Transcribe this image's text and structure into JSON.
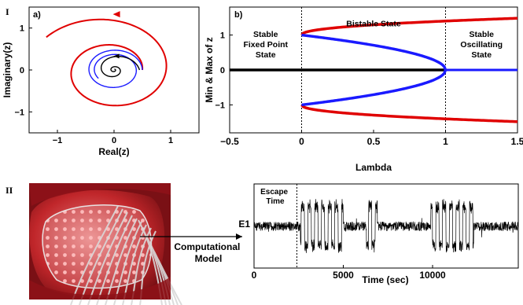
{
  "section_labels": [
    "I",
    "II"
  ],
  "chart_data": [
    {
      "panel": "a)",
      "type": "line",
      "xlabel": "Real(z)",
      "ylabel": "Imaginary(z)",
      "xlim": [
        -1.5,
        1.5
      ],
      "ylim": [
        -1.5,
        1.5
      ],
      "xticks": [
        -1,
        0,
        1
      ],
      "yticks": [
        -1,
        0,
        1
      ],
      "xtick_labels": [
        "−1",
        "0",
        "1"
      ],
      "ytick_labels": [
        "−1",
        "0",
        "1"
      ],
      "grid": false,
      "series": [
        {
          "color": "#e00000",
          "curve": "spiral",
          "start": [
            0.5,
            0
          ],
          "end_radius": 1.33,
          "turns": 1.4
        },
        {
          "color": "#1a1aff",
          "curve": "spiral",
          "start": [
            0.5,
            0
          ],
          "end_radius": 0.34,
          "turns": 1.6
        },
        {
          "color": "#000000",
          "curve": "spiral",
          "start": [
            0.45,
            0
          ],
          "end_radius": 0.02,
          "turns": 2.2
        }
      ]
    },
    {
      "panel": "b)",
      "type": "line",
      "xlabel": "Lambda",
      "ylabel": "Min & Max of z",
      "xlim": [
        -0.5,
        1.5
      ],
      "ylim": [
        -1.8,
        1.8
      ],
      "xticks": [
        -0.5,
        0,
        0.5,
        1,
        1.5
      ],
      "yticks": [
        -1,
        0,
        1
      ],
      "xtick_labels": [
        "−0.5",
        "0",
        "0.5",
        "1",
        "1.5"
      ],
      "ytick_labels": [
        "−1",
        "0",
        "1"
      ],
      "vlines": [
        0,
        1
      ],
      "regions": [
        {
          "label": "Stable\nFixed Point\nState",
          "x": -0.25,
          "y": 0.95
        },
        {
          "label": "Bistable State",
          "x": 0.5,
          "y": 1.25
        },
        {
          "label": "Stable\nOscillating\nState",
          "x": 1.25,
          "y": 0.95
        }
      ],
      "series": [
        {
          "color": "#000000",
          "x": [
            -0.5,
            1
          ],
          "y": [
            0,
            0
          ]
        },
        {
          "color": "#1a1aff",
          "x": [
            1,
            1.5
          ],
          "y": [
            0,
            0
          ]
        },
        {
          "color": "#e00000",
          "relation": "r = sqrt((1 + sqrt(4*lambda - 3 + 1)) / 2)-like stable branch",
          "x": [
            0,
            0.25,
            0.5,
            0.75,
            1,
            1.25,
            1.5
          ],
          "y_upper": [
            1.0,
            1.22,
            1.3,
            1.36,
            1.41,
            1.45,
            1.48
          ]
        },
        {
          "color": "#1a1aff",
          "relation": "unstable branch",
          "x": [
            0,
            0.25,
            0.5,
            0.75,
            0.9,
            1.0
          ],
          "y_upper": [
            1.0,
            0.87,
            0.71,
            0.5,
            0.32,
            0.0
          ]
        }
      ]
    },
    {
      "panel": "II",
      "type": "line",
      "xlabel": "Time (sec)",
      "ylabel": "E1",
      "xlim": [
        0,
        14800
      ],
      "xticks": [
        0,
        5000,
        10000
      ],
      "xtick_labels": [
        "0",
        "5000",
        "10000"
      ],
      "annotation": "Escape\nTime",
      "vline": 2400,
      "bursts": [
        [
          2600,
          5000
        ],
        [
          6300,
          6900
        ],
        [
          9900,
          12300
        ]
      ]
    }
  ],
  "photo": {
    "arrow_label": "Computational\nModel"
  }
}
